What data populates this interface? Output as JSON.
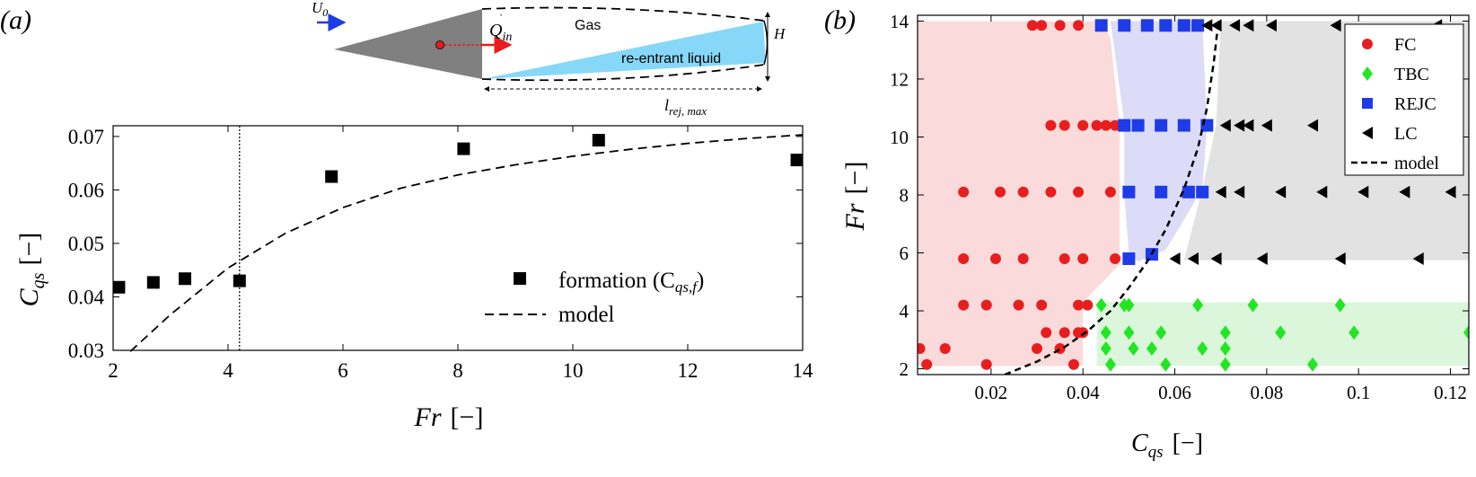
{
  "panel_labels": {
    "a": "(a)",
    "b": "(b)"
  },
  "schematic": {
    "velocity_label": "U",
    "velocity_sub": "0",
    "flux_label": "Q",
    "flux_sub": "in",
    "gas_label": "Gas",
    "liquid_label": "re-entrant liquid",
    "height_label": "H",
    "length_label": "l",
    "length_sub": "rej, max",
    "colors": {
      "wedge": "#808080",
      "liquid": "#87D8F8",
      "arrow_flow": "#1E3BE8",
      "arrow_flux": "#E81E1E",
      "dot": "#E81E1E"
    }
  },
  "chart_data": [
    {
      "type": "scatter",
      "title": "",
      "xlabel": "Fr",
      "xlabel_unit": "[−]",
      "ylabel": "C",
      "ylabel_sub": "qs",
      "ylabel_unit": "[−]",
      "xlim": [
        2,
        14
      ],
      "ylim": [
        0.03,
        0.072
      ],
      "xticks": [
        "2",
        "4",
        "6",
        "8",
        "10",
        "12",
        "14"
      ],
      "yticks": [
        "0.03",
        "0.04",
        "0.05",
        "0.06",
        "0.07"
      ],
      "xtick_values": [
        2,
        4,
        6,
        8,
        10,
        12,
        14
      ],
      "ytick_values": [
        0.03,
        0.04,
        0.05,
        0.06,
        0.07
      ],
      "grid": false,
      "legend_position": "bottom-right",
      "vline_x": 4.2,
      "series": [
        {
          "name": "formation (C",
          "name_sub": "qs,f",
          "name_end": ")",
          "marker": "square",
          "color": "#000000",
          "points": [
            [
              2.1,
              0.0418
            ],
            [
              2.7,
              0.0427
            ],
            [
              3.25,
              0.0434
            ],
            [
              4.2,
              0.043
            ],
            [
              5.8,
              0.0625
            ],
            [
              8.1,
              0.0677
            ],
            [
              10.45,
              0.0693
            ],
            [
              13.9,
              0.0656
            ]
          ]
        },
        {
          "name": "model",
          "style": "dashed",
          "color": "#000000",
          "points": [
            [
              2.3,
              0.0298
            ],
            [
              3,
              0.0367
            ],
            [
              4,
              0.0454
            ],
            [
              5,
              0.0519
            ],
            [
              6,
              0.0567
            ],
            [
              7,
              0.0603
            ],
            [
              8,
              0.0628
            ],
            [
              9,
              0.0647
            ],
            [
              10,
              0.0663
            ],
            [
              11,
              0.0676
            ],
            [
              12,
              0.0687
            ],
            [
              13,
              0.0696
            ],
            [
              14,
              0.0703
            ]
          ]
        }
      ]
    },
    {
      "type": "scatter",
      "title": "",
      "xlabel": "C",
      "xlabel_sub": "qs",
      "xlabel_unit": "[−]",
      "ylabel": "Fr",
      "ylabel_unit": "[−]",
      "xlim": [
        0.004,
        0.124
      ],
      "ylim": [
        1.8,
        14.2
      ],
      "xticks": [
        "0.02",
        "0.04",
        "0.06",
        "0.08",
        "0.1",
        "0.12"
      ],
      "yticks": [
        "2",
        "4",
        "6",
        "8",
        "10",
        "12",
        "14"
      ],
      "xtick_values": [
        0.02,
        0.04,
        0.06,
        0.08,
        0.1,
        0.12
      ],
      "ytick_values": [
        2,
        4,
        6,
        8,
        10,
        12,
        14
      ],
      "grid": false,
      "legend_position": "top-right",
      "regions": [
        {
          "color": "#FADADA",
          "polygon": [
            [
              0.004,
              2.1
            ],
            [
              0.04,
              2.1
            ],
            [
              0.04,
              4.3
            ],
            [
              0.048,
              5.6
            ],
            [
              0.048,
              10.4
            ],
            [
              0.046,
              13.4
            ],
            [
              0.044,
              14.0
            ],
            [
              0.004,
              14.0
            ]
          ]
        },
        {
          "color": "#DCDCF8",
          "polygon": [
            [
              0.046,
              14.0
            ],
            [
              0.066,
              14.0
            ],
            [
              0.067,
              10.4
            ],
            [
              0.066,
              8.2
            ],
            [
              0.058,
              6.1
            ],
            [
              0.052,
              5.7
            ],
            [
              0.05,
              6.0
            ],
            [
              0.049,
              8.0
            ],
            [
              0.049,
              10.5
            ]
          ]
        },
        {
          "color": "#E2E2E2",
          "polygon": [
            [
              0.07,
              14.0
            ],
            [
              0.124,
              14.0
            ],
            [
              0.124,
              5.75
            ],
            [
              0.062,
              5.75
            ],
            [
              0.066,
              8.2
            ],
            [
              0.069,
              10.4
            ]
          ]
        },
        {
          "color": "#DCF6DC",
          "polygon": [
            [
              0.043,
              2.1
            ],
            [
              0.124,
              2.1
            ],
            [
              0.124,
              4.3
            ],
            [
              0.043,
              4.3
            ]
          ]
        }
      ],
      "series": [
        {
          "name": "FC",
          "marker": "circle",
          "color": "#E81E1E",
          "points": [
            [
              0.0045,
              2.7
            ],
            [
              0.006,
              2.15
            ],
            [
              0.01,
              2.7
            ],
            [
              0.019,
              2.15
            ],
            [
              0.03,
              2.7
            ],
            [
              0.032,
              3.25
            ],
            [
              0.035,
              2.7
            ],
            [
              0.036,
              3.25
            ],
            [
              0.038,
              2.15
            ],
            [
              0.039,
              3.25
            ],
            [
              0.04,
              3.25
            ],
            [
              0.014,
              4.2
            ],
            [
              0.019,
              4.2
            ],
            [
              0.026,
              4.2
            ],
            [
              0.031,
              4.2
            ],
            [
              0.039,
              4.2
            ],
            [
              0.041,
              4.2
            ],
            [
              0.014,
              5.8
            ],
            [
              0.021,
              5.8
            ],
            [
              0.027,
              5.8
            ],
            [
              0.036,
              5.8
            ],
            [
              0.04,
              5.8
            ],
            [
              0.047,
              5.8
            ],
            [
              0.014,
              8.1
            ],
            [
              0.022,
              8.1
            ],
            [
              0.027,
              8.1
            ],
            [
              0.033,
              8.1
            ],
            [
              0.039,
              8.1
            ],
            [
              0.046,
              8.1
            ],
            [
              0.033,
              10.4
            ],
            [
              0.036,
              10.4
            ],
            [
              0.04,
              10.4
            ],
            [
              0.043,
              10.4
            ],
            [
              0.045,
              10.4
            ],
            [
              0.047,
              10.4
            ],
            [
              0.029,
              13.85
            ],
            [
              0.031,
              13.85
            ],
            [
              0.035,
              13.85
            ],
            [
              0.039,
              13.85
            ]
          ]
        },
        {
          "name": "TBC",
          "marker": "diamond",
          "color": "#22E622",
          "points": [
            [
              0.044,
              4.2
            ],
            [
              0.049,
              4.2
            ],
            [
              0.05,
              4.2
            ],
            [
              0.065,
              4.2
            ],
            [
              0.077,
              4.2
            ],
            [
              0.096,
              4.2
            ],
            [
              0.045,
              3.25
            ],
            [
              0.05,
              3.25
            ],
            [
              0.057,
              3.25
            ],
            [
              0.071,
              3.25
            ],
            [
              0.083,
              3.25
            ],
            [
              0.099,
              3.25
            ],
            [
              0.124,
              3.25
            ],
            [
              0.045,
              2.7
            ],
            [
              0.051,
              2.7
            ],
            [
              0.055,
              2.7
            ],
            [
              0.066,
              2.7
            ],
            [
              0.071,
              2.7
            ],
            [
              0.046,
              2.15
            ],
            [
              0.058,
              2.15
            ],
            [
              0.071,
              2.15
            ],
            [
              0.09,
              2.15
            ]
          ]
        },
        {
          "name": "REJC",
          "marker": "square",
          "color": "#1E3BE8",
          "points": [
            [
              0.05,
              5.8
            ],
            [
              0.055,
              5.95
            ],
            [
              0.05,
              8.1
            ],
            [
              0.057,
              8.1
            ],
            [
              0.063,
              8.1
            ],
            [
              0.066,
              8.1
            ],
            [
              0.049,
              10.4
            ],
            [
              0.052,
              10.4
            ],
            [
              0.057,
              10.4
            ],
            [
              0.062,
              10.4
            ],
            [
              0.067,
              10.4
            ],
            [
              0.044,
              13.85
            ],
            [
              0.049,
              13.85
            ],
            [
              0.054,
              13.85
            ],
            [
              0.058,
              13.85
            ],
            [
              0.062,
              13.85
            ],
            [
              0.065,
              13.85
            ]
          ]
        },
        {
          "name": "LC",
          "marker": "triangle-left",
          "color": "#000000",
          "points": [
            [
              0.06,
              5.8
            ],
            [
              0.064,
              5.8
            ],
            [
              0.069,
              5.8
            ],
            [
              0.079,
              5.8
            ],
            [
              0.096,
              5.8
            ],
            [
              0.113,
              5.8
            ],
            [
              0.07,
              8.1
            ],
            [
              0.074,
              8.1
            ],
            [
              0.083,
              8.1
            ],
            [
              0.092,
              8.1
            ],
            [
              0.101,
              8.1
            ],
            [
              0.11,
              8.1
            ],
            [
              0.12,
              8.1
            ],
            [
              0.071,
              10.4
            ],
            [
              0.074,
              10.4
            ],
            [
              0.076,
              10.4
            ],
            [
              0.08,
              10.4
            ],
            [
              0.09,
              10.4
            ],
            [
              0.099,
              10.4
            ],
            [
              0.118,
              10.4
            ],
            [
              0.067,
              13.85
            ],
            [
              0.069,
              13.85
            ],
            [
              0.073,
              13.85
            ],
            [
              0.076,
              13.85
            ],
            [
              0.081,
              13.85
            ],
            [
              0.095,
              13.85
            ],
            [
              0.117,
              13.85
            ]
          ]
        },
        {
          "name": "model",
          "style": "dashed",
          "color": "#000000",
          "points": [
            [
              0.023,
              1.8
            ],
            [
              0.03,
              2.25
            ],
            [
              0.036,
              2.75
            ],
            [
              0.041,
              3.3
            ],
            [
              0.046,
              4.0
            ],
            [
              0.05,
              4.8
            ],
            [
              0.054,
              5.7
            ],
            [
              0.058,
              6.8
            ],
            [
              0.062,
              8.2
            ],
            [
              0.065,
              9.6
            ],
            [
              0.067,
              11.0
            ],
            [
              0.0685,
              12.6
            ],
            [
              0.0695,
              14.0
            ]
          ]
        }
      ]
    }
  ]
}
